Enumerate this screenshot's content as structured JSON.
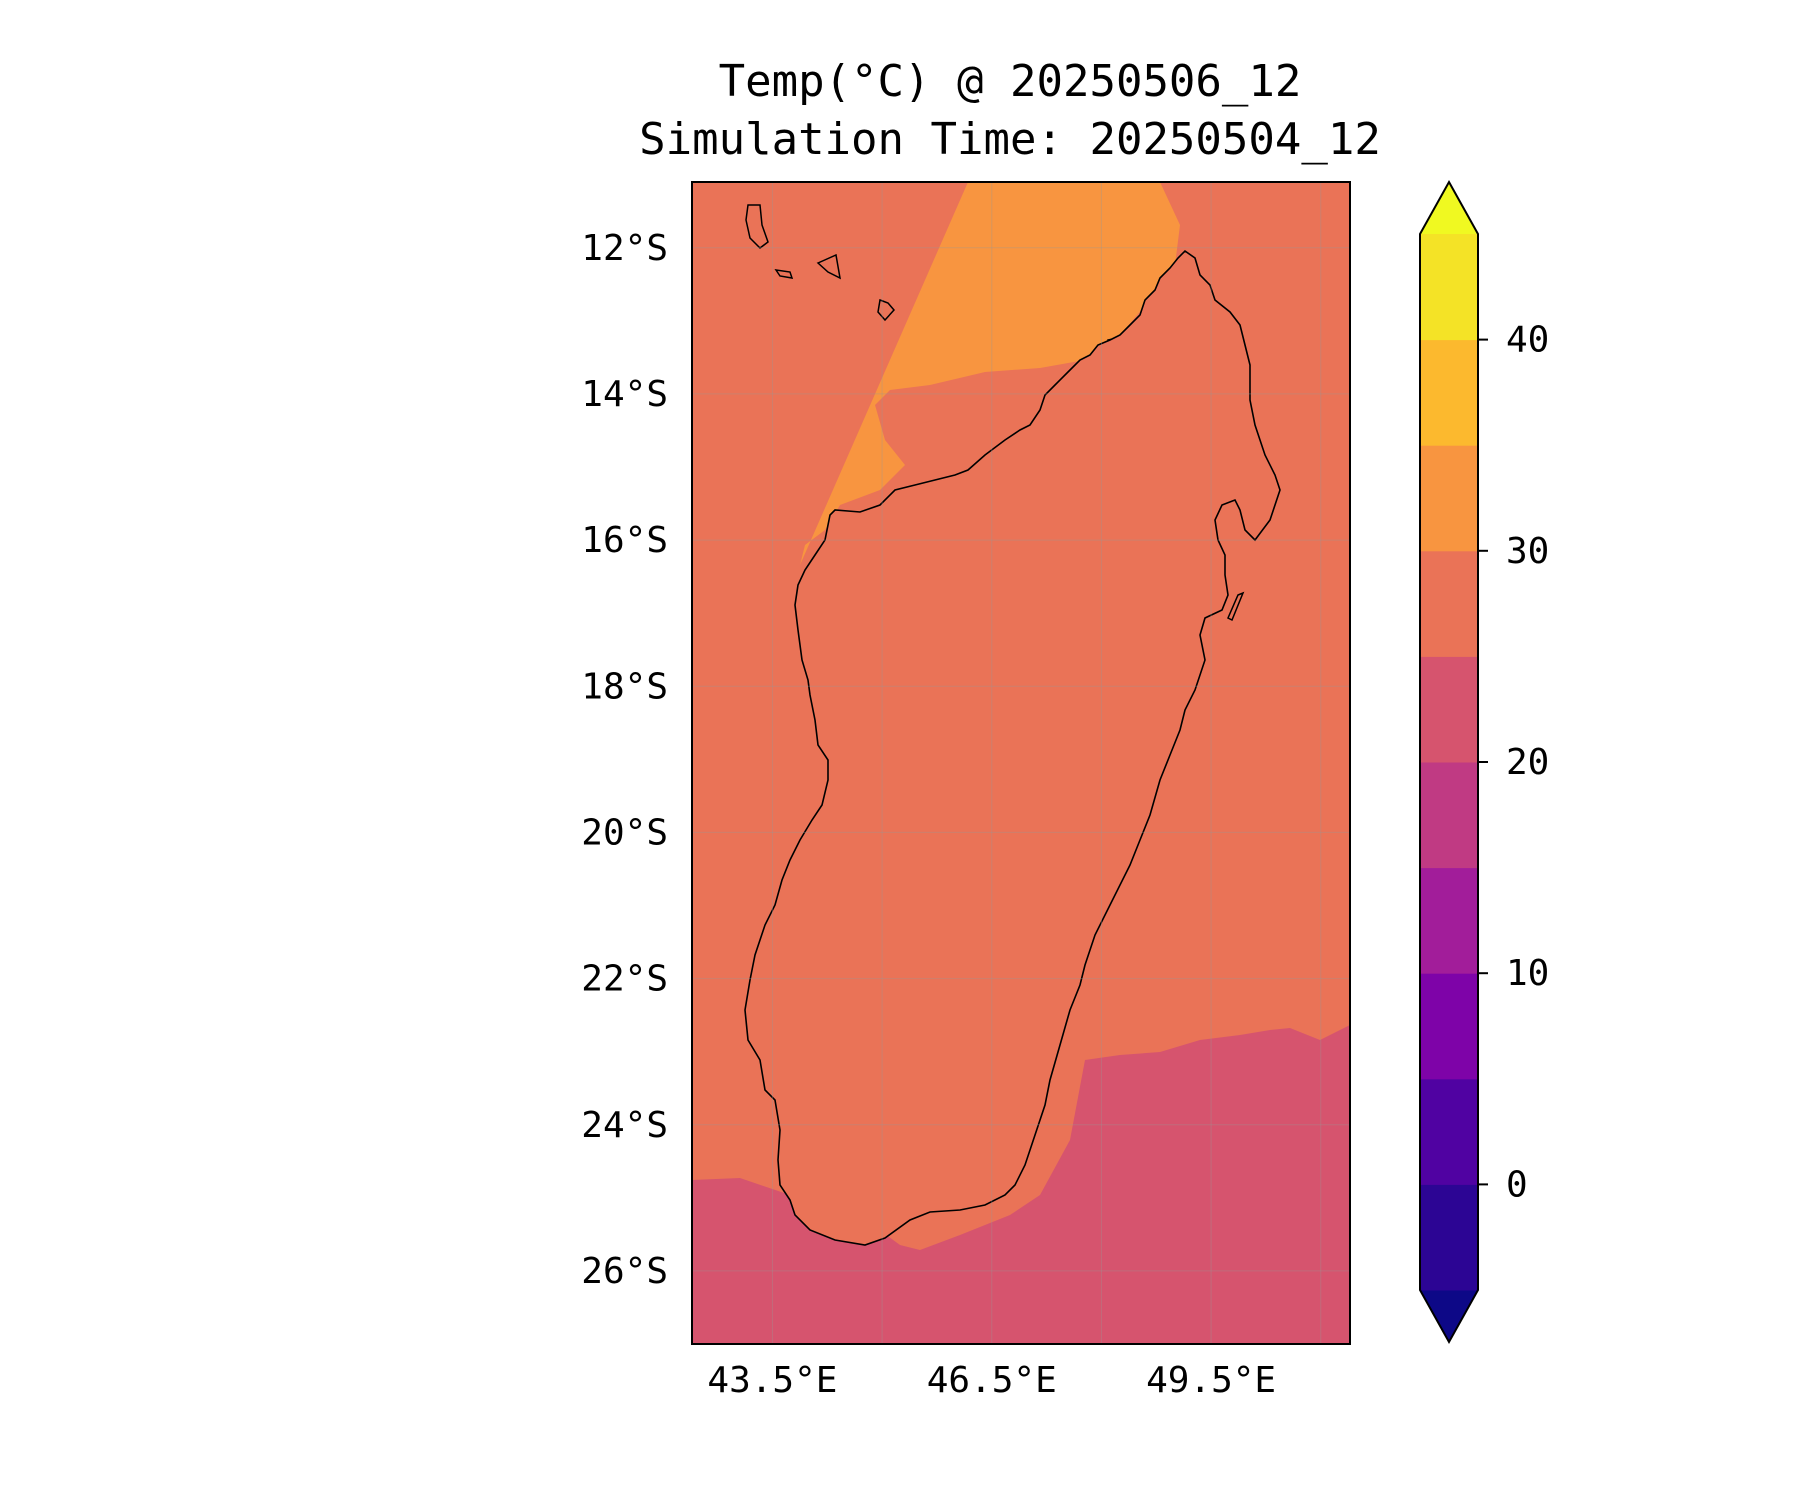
{
  "title": {
    "line1": "Temp(°C) @ 20250506_12",
    "line2": "Simulation Time: 20250504_12"
  },
  "map": {
    "region": "Madagascar",
    "lon_range": [
      42.4,
      51.4
    ],
    "lat_range": [
      -27.0,
      -11.1
    ],
    "lat_ticks": [
      "12°S",
      "14°S",
      "16°S",
      "18°S",
      "20°S",
      "22°S",
      "24°S",
      "26°S"
    ],
    "lon_ticks": [
      "43.5°E",
      "46.5°E",
      "49.5°E"
    ],
    "grid": true,
    "coastline_color": "#000000"
  },
  "colorbar": {
    "levels": [
      -5,
      0,
      5,
      10,
      15,
      20,
      25,
      30,
      35,
      40,
      45
    ],
    "tick_labels": [
      "0",
      "10",
      "20",
      "30",
      "40"
    ],
    "colors": [
      "#0d0887",
      "#2c0594",
      "#5002a2",
      "#7e03a8",
      "#a21d9a",
      "#c03a83",
      "#d6546e",
      "#ea7357",
      "#f89540",
      "#fcb92e",
      "#f4e326",
      "#f0f921"
    ],
    "extend": "both"
  }
}
